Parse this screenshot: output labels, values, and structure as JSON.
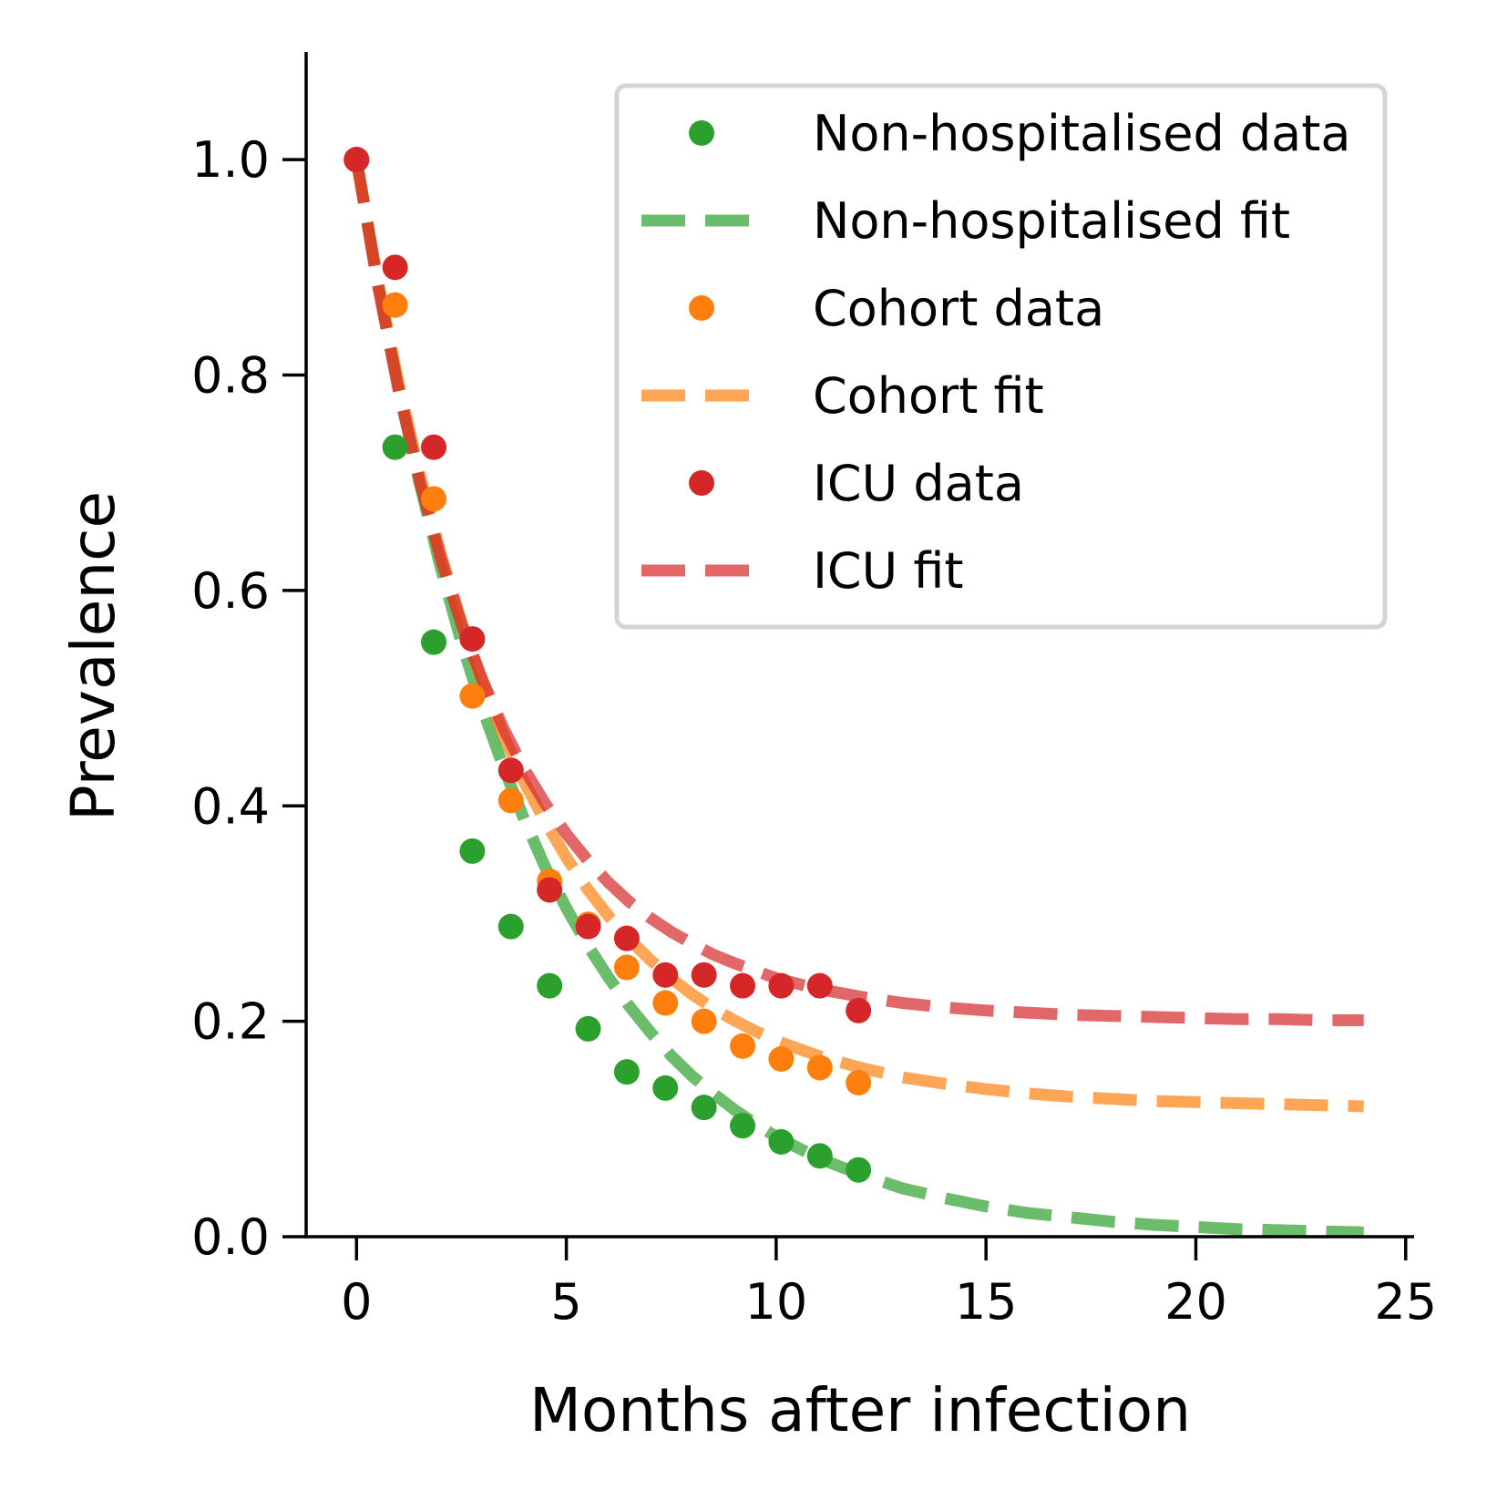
{
  "chart_data": {
    "type": "scatter",
    "title": "",
    "xlabel": "Months after infection",
    "ylabel": "Prevalence",
    "xlim": [
      -1.2,
      25.2
    ],
    "ylim": [
      0,
      1.1
    ],
    "xticks": [
      0,
      5,
      10,
      15,
      20,
      25
    ],
    "yticks": [
      0.0,
      0.2,
      0.4,
      0.6,
      0.8,
      1.0
    ],
    "xtick_labels": [
      "0",
      "5",
      "10",
      "15",
      "20",
      "25"
    ],
    "ytick_labels": [
      "0.0",
      "0.2",
      "0.4",
      "0.6",
      "0.8",
      "1.0"
    ],
    "grid": false,
    "legend_position": "top-right",
    "series": [
      {
        "name": "Non-hospitalised data",
        "kind": "points",
        "color": "#2ca02c",
        "x": [
          0,
          0.92,
          1.84,
          2.76,
          3.68,
          4.6,
          5.52,
          6.44,
          7.36,
          8.28,
          9.2,
          10.12,
          11.04,
          11.96
        ],
        "y": [
          1.0,
          0.733,
          0.552,
          0.358,
          0.288,
          0.233,
          0.193,
          0.153,
          0.138,
          0.12,
          0.103,
          0.088,
          0.075,
          0.062
        ]
      },
      {
        "name": "Non-hospitalised fit",
        "kind": "dashed-line",
        "color": "#2ca02c",
        "x": [
          0,
          0.5,
          1,
          1.5,
          2,
          2.5,
          3,
          3.5,
          4,
          4.5,
          5,
          5.5,
          6,
          6.5,
          7,
          7.5,
          8,
          8.5,
          9,
          9.5,
          10,
          11,
          12,
          13,
          14,
          15,
          16,
          17,
          18,
          19,
          20,
          21,
          22,
          23,
          24
        ],
        "y": [
          1.0,
          0.888,
          0.789,
          0.7,
          0.622,
          0.552,
          0.49,
          0.436,
          0.387,
          0.343,
          0.305,
          0.271,
          0.241,
          0.214,
          0.19,
          0.168,
          0.149,
          0.133,
          0.118,
          0.105,
          0.093,
          0.073,
          0.058,
          0.045,
          0.036,
          0.028,
          0.022,
          0.018,
          0.014,
          0.011,
          0.009,
          0.007,
          0.006,
          0.005,
          0.004
        ]
      },
      {
        "name": "Cohort data",
        "kind": "points",
        "color": "#ff7f0e",
        "x": [
          0,
          0.92,
          1.84,
          2.76,
          3.68,
          4.6,
          5.52,
          6.44,
          7.36,
          8.28,
          9.2,
          10.12,
          11.04,
          11.96
        ],
        "y": [
          1.0,
          0.865,
          0.685,
          0.502,
          0.405,
          0.33,
          0.29,
          0.25,
          0.217,
          0.2,
          0.177,
          0.165,
          0.157,
          0.143
        ]
      },
      {
        "name": "Cohort fit",
        "kind": "dashed-line",
        "color": "#ff7f0e",
        "x": [
          0,
          0.5,
          1,
          1.5,
          2,
          2.5,
          3,
          3.5,
          4,
          4.5,
          5,
          5.5,
          6,
          6.5,
          7,
          7.5,
          8,
          8.5,
          9,
          9.5,
          10,
          11,
          12,
          13,
          14,
          15,
          16,
          17,
          18,
          19,
          20,
          21,
          22,
          23,
          24
        ],
        "y": [
          1.0,
          0.889,
          0.793,
          0.709,
          0.635,
          0.571,
          0.515,
          0.466,
          0.422,
          0.385,
          0.352,
          0.323,
          0.298,
          0.276,
          0.257,
          0.24,
          0.225,
          0.212,
          0.201,
          0.191,
          0.182,
          0.168,
          0.157,
          0.148,
          0.142,
          0.137,
          0.133,
          0.13,
          0.128,
          0.126,
          0.125,
          0.124,
          0.123,
          0.122,
          0.121
        ]
      },
      {
        "name": "ICU data",
        "kind": "points",
        "color": "#d62728",
        "x": [
          0,
          0.92,
          1.84,
          2.76,
          3.68,
          4.6,
          5.52,
          6.44,
          7.36,
          8.28,
          9.2,
          10.12,
          11.04,
          11.96
        ],
        "y": [
          1.0,
          0.9,
          0.733,
          0.555,
          0.433,
          0.322,
          0.288,
          0.277,
          0.243,
          0.243,
          0.233,
          0.233,
          0.233,
          0.21
        ]
      },
      {
        "name": "ICU fit",
        "kind": "dashed-line",
        "color": "#d62728",
        "x": [
          0,
          0.5,
          1,
          1.5,
          2,
          2.5,
          3,
          3.5,
          4,
          4.5,
          5,
          5.5,
          6,
          6.5,
          7,
          7.5,
          8,
          8.5,
          9,
          9.5,
          10,
          11,
          12,
          13,
          14,
          15,
          16,
          17,
          18,
          19,
          20,
          21,
          22,
          23,
          24
        ],
        "y": [
          1.0,
          0.885,
          0.786,
          0.702,
          0.631,
          0.569,
          0.517,
          0.472,
          0.434,
          0.402,
          0.374,
          0.35,
          0.329,
          0.311,
          0.296,
          0.283,
          0.272,
          0.262,
          0.254,
          0.247,
          0.24,
          0.23,
          0.223,
          0.217,
          0.213,
          0.21,
          0.208,
          0.206,
          0.205,
          0.204,
          0.203,
          0.202,
          0.202,
          0.201,
          0.201
        ]
      }
    ]
  }
}
